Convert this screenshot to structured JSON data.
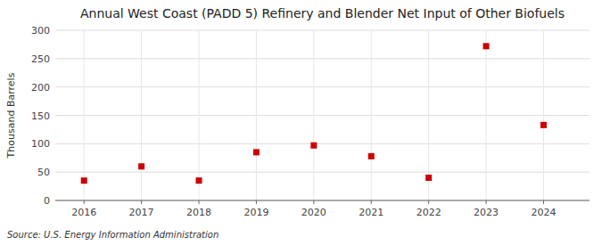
{
  "chart_data": {
    "type": "scatter",
    "title": "Annual West Coast (PADD 5) Refinery and Blender Net Input of Other Biofuels",
    "y_label": "Thousand Barrels",
    "source": "Source: U.S. Energy Information Administration",
    "x": [
      2016,
      2017,
      2018,
      2019,
      2020,
      2021,
      2022,
      2023,
      2024
    ],
    "values": [
      35,
      60,
      35,
      85,
      97,
      78,
      40,
      272,
      133
    ],
    "color": "#cc0000",
    "marker": "square",
    "xlim": [
      2015.5,
      2024.8
    ],
    "ylim": [
      0,
      300
    ],
    "xticks": [
      2016,
      2017,
      2018,
      2019,
      2020,
      2021,
      2022,
      2023,
      2024
    ],
    "yticks": [
      0,
      50,
      100,
      150,
      200,
      250,
      300
    ],
    "grid": true
  }
}
